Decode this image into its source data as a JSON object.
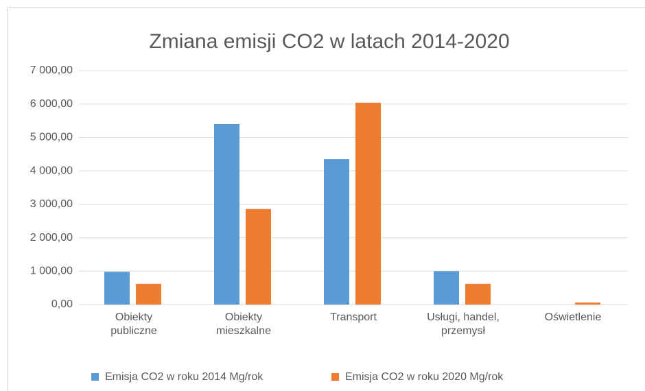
{
  "chart_data": {
    "type": "bar",
    "title": "Zmiana emisji CO2 w latach 2014-2020",
    "categories": [
      "Obiekty publiczne",
      "Obiekty mieszkalne",
      "Transport",
      "Usługi, handel, przemysł",
      "Oświetlenie"
    ],
    "series": [
      {
        "name": "Emisja CO2 w roku 2014 Mg/rok",
        "color": "#5b9bd5",
        "values": [
          980,
          5400,
          4350,
          1000,
          0
        ]
      },
      {
        "name": "Emisja CO2 w roku 2020 Mg/rok",
        "color": "#ed7d31",
        "values": [
          620,
          2860,
          6040,
          620,
          60
        ]
      }
    ],
    "ylim": [
      0,
      7000
    ],
    "yticks": [
      {
        "value": 0,
        "label": "0,00"
      },
      {
        "value": 1000,
        "label": "1 000,00"
      },
      {
        "value": 2000,
        "label": "2 000,00"
      },
      {
        "value": 3000,
        "label": "3 000,00"
      },
      {
        "value": 4000,
        "label": "4 000,00"
      },
      {
        "value": 5000,
        "label": "5 000,00"
      },
      {
        "value": 6000,
        "label": "6 000,00"
      },
      {
        "value": 7000,
        "label": "7 000,00"
      }
    ],
    "grid": true,
    "legend": "bottom"
  }
}
